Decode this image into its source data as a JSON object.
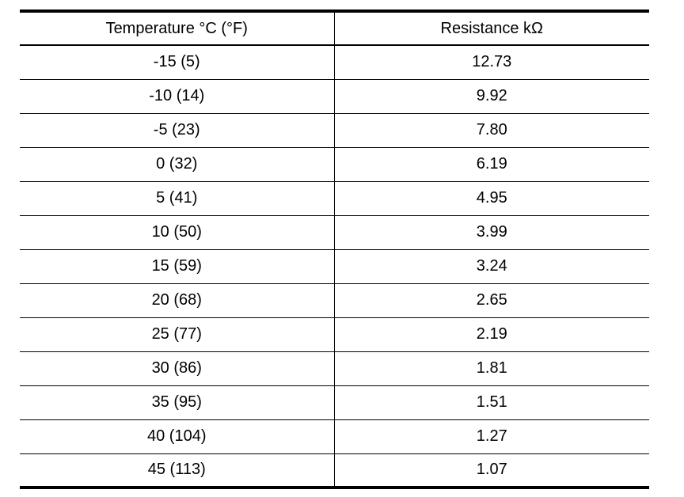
{
  "table": {
    "headers": [
      "Temperature °C (°F)",
      "Resistance kΩ"
    ],
    "rows": [
      [
        "-15 (5)",
        "12.73"
      ],
      [
        "-10 (14)",
        "9.92"
      ],
      [
        "-5 (23)",
        "7.80"
      ],
      [
        "0 (32)",
        "6.19"
      ],
      [
        "5 (41)",
        "4.95"
      ],
      [
        "10 (50)",
        "3.99"
      ],
      [
        "15 (59)",
        "3.24"
      ],
      [
        "20 (68)",
        "2.65"
      ],
      [
        "25 (77)",
        "2.19"
      ],
      [
        "30 (86)",
        "1.81"
      ],
      [
        "35 (95)",
        "1.51"
      ],
      [
        "40 (104)",
        "1.27"
      ],
      [
        "45 (113)",
        "1.07"
      ]
    ]
  }
}
